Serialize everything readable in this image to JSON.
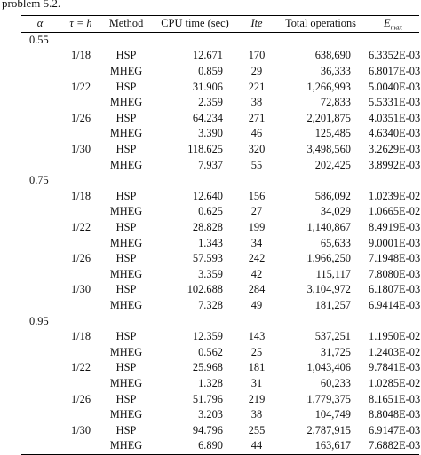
{
  "caption": "problem 5.2.",
  "headers": {
    "alpha": "α",
    "tau": "τ = h",
    "method": "Method",
    "cpu": "CPU time (sec)",
    "ite": "Ite",
    "ops": "Total operations",
    "emax_base": "E",
    "emax_sub": "max"
  },
  "rows": [
    {
      "alpha": "0.55",
      "tau": "",
      "method": "",
      "cpu": "",
      "ite": "",
      "ops": "",
      "emax": ""
    },
    {
      "alpha": "",
      "tau": "1/18",
      "method": "HSP",
      "cpu": "12.671",
      "ite": "170",
      "ops": "638,690",
      "emax": "6.3352E-03"
    },
    {
      "alpha": "",
      "tau": "",
      "method": "MHEG",
      "cpu": "0.859",
      "ite": "29",
      "ops": "36,333",
      "emax": "6.8017E-03"
    },
    {
      "alpha": "",
      "tau": "1/22",
      "method": "HSP",
      "cpu": "31.906",
      "ite": "221",
      "ops": "1,266,993",
      "emax": "5.0040E-03"
    },
    {
      "alpha": "",
      "tau": "",
      "method": "MHEG",
      "cpu": "2.359",
      "ite": "38",
      "ops": "72,833",
      "emax": "5.5331E-03"
    },
    {
      "alpha": "",
      "tau": "1/26",
      "method": "HSP",
      "cpu": "64.234",
      "ite": "271",
      "ops": "2,201,875",
      "emax": "4.0351E-03"
    },
    {
      "alpha": "",
      "tau": "",
      "method": "MHEG",
      "cpu": "3.390",
      "ite": "46",
      "ops": "125,485",
      "emax": "4.6340E-03"
    },
    {
      "alpha": "",
      "tau": "1/30",
      "method": "HSP",
      "cpu": "118.625",
      "ite": "320",
      "ops": "3,498,560",
      "emax": "3.2629E-03"
    },
    {
      "alpha": "",
      "tau": "",
      "method": "MHEG",
      "cpu": "7.937",
      "ite": "55",
      "ops": "202,425",
      "emax": "3.8992E-03"
    },
    {
      "alpha": "0.75",
      "tau": "",
      "method": "",
      "cpu": "",
      "ite": "",
      "ops": "",
      "emax": ""
    },
    {
      "alpha": "",
      "tau": "1/18",
      "method": "HSP",
      "cpu": "12.640",
      "ite": "156",
      "ops": "586,092",
      "emax": "1.0239E-02"
    },
    {
      "alpha": "",
      "tau": "",
      "method": "MHEG",
      "cpu": "0.625",
      "ite": "27",
      "ops": "34,029",
      "emax": "1.0665E-02"
    },
    {
      "alpha": "",
      "tau": "1/22",
      "method": "HSP",
      "cpu": "28.828",
      "ite": "199",
      "ops": "1,140,867",
      "emax": "8.4919E-03"
    },
    {
      "alpha": "",
      "tau": "",
      "method": "MHEG",
      "cpu": "1.343",
      "ite": "34",
      "ops": "65,633",
      "emax": "9.0001E-03"
    },
    {
      "alpha": "",
      "tau": "1/26",
      "method": "HSP",
      "cpu": "57.593",
      "ite": "242",
      "ops": "1,966,250",
      "emax": "7.1948E-03"
    },
    {
      "alpha": "",
      "tau": "",
      "method": "MHEG",
      "cpu": "3.359",
      "ite": "42",
      "ops": "115,117",
      "emax": "7.8080E-03"
    },
    {
      "alpha": "",
      "tau": "1/30",
      "method": "HSP",
      "cpu": "102.688",
      "ite": "284",
      "ops": "3,104,972",
      "emax": "6.1807E-03"
    },
    {
      "alpha": "",
      "tau": "",
      "method": "MHEG",
      "cpu": "7.328",
      "ite": "49",
      "ops": "181,257",
      "emax": "6.9414E-03"
    },
    {
      "alpha": "0.95",
      "tau": "",
      "method": "",
      "cpu": "",
      "ite": "",
      "ops": "",
      "emax": ""
    },
    {
      "alpha": "",
      "tau": "1/18",
      "method": "HSP",
      "cpu": "12.359",
      "ite": "143",
      "ops": "537,251",
      "emax": "1.1950E-02"
    },
    {
      "alpha": "",
      "tau": "",
      "method": "MHEG",
      "cpu": "0.562",
      "ite": "25",
      "ops": "31,725",
      "emax": "1.2403E-02"
    },
    {
      "alpha": "",
      "tau": "1/22",
      "method": "HSP",
      "cpu": "25.968",
      "ite": "181",
      "ops": "1,043,406",
      "emax": "9.7841E-03"
    },
    {
      "alpha": "",
      "tau": "",
      "method": "MHEG",
      "cpu": "1.328",
      "ite": "31",
      "ops": "60,233",
      "emax": "1.0285E-02"
    },
    {
      "alpha": "",
      "tau": "1/26",
      "method": "HSP",
      "cpu": "51.796",
      "ite": "219",
      "ops": "1,779,375",
      "emax": "8.1651E-03"
    },
    {
      "alpha": "",
      "tau": "",
      "method": "MHEG",
      "cpu": "3.203",
      "ite": "38",
      "ops": "104,749",
      "emax": "8.8048E-03"
    },
    {
      "alpha": "",
      "tau": "1/30",
      "method": "HSP",
      "cpu": "94.796",
      "ite": "255",
      "ops": "2,787,915",
      "emax": "6.9147E-03"
    },
    {
      "alpha": "",
      "tau": "",
      "method": "MHEG",
      "cpu": "6.890",
      "ite": "44",
      "ops": "163,617",
      "emax": "7.6882E-03"
    }
  ]
}
